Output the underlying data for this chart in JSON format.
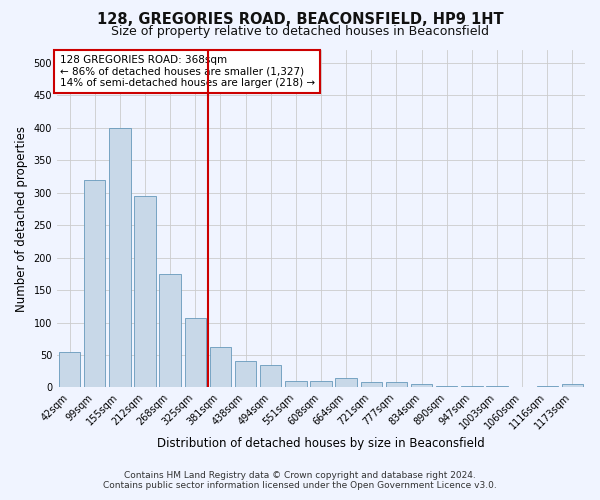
{
  "title": "128, GREGORIES ROAD, BEACONSFIELD, HP9 1HT",
  "subtitle": "Size of property relative to detached houses in Beaconsfield",
  "xlabel": "Distribution of detached houses by size in Beaconsfield",
  "ylabel": "Number of detached properties",
  "footnote1": "Contains HM Land Registry data © Crown copyright and database right 2024.",
  "footnote2": "Contains public sector information licensed under the Open Government Licence v3.0.",
  "categories": [
    "42sqm",
    "99sqm",
    "155sqm",
    "212sqm",
    "268sqm",
    "325sqm",
    "381sqm",
    "438sqm",
    "494sqm",
    "551sqm",
    "608sqm",
    "664sqm",
    "721sqm",
    "777sqm",
    "834sqm",
    "890sqm",
    "947sqm",
    "1003sqm",
    "1060sqm",
    "1116sqm",
    "1173sqm"
  ],
  "values": [
    55,
    320,
    400,
    295,
    175,
    107,
    63,
    40,
    35,
    10,
    10,
    15,
    8,
    8,
    5,
    2,
    2,
    2,
    0,
    2,
    5
  ],
  "bar_color": "#c8d8e8",
  "bar_edge_color": "#6699bb",
  "vline_x": 5.5,
  "vline_color": "#cc0000",
  "annotation_text": "128 GREGORIES ROAD: 368sqm\n← 86% of detached houses are smaller (1,327)\n14% of semi-detached houses are larger (218) →",
  "annotation_box_color": "#ffffff",
  "annotation_box_edge": "#cc0000",
  "ylim": [
    0,
    520
  ],
  "yticks": [
    0,
    50,
    100,
    150,
    200,
    250,
    300,
    350,
    400,
    450,
    500
  ],
  "grid_color": "#cccccc",
  "background_color": "#f0f4ff",
  "title_fontsize": 10.5,
  "subtitle_fontsize": 9,
  "axis_label_fontsize": 8.5,
  "tick_fontsize": 7,
  "footnote_fontsize": 6.5,
  "annotation_fontsize": 7.5
}
